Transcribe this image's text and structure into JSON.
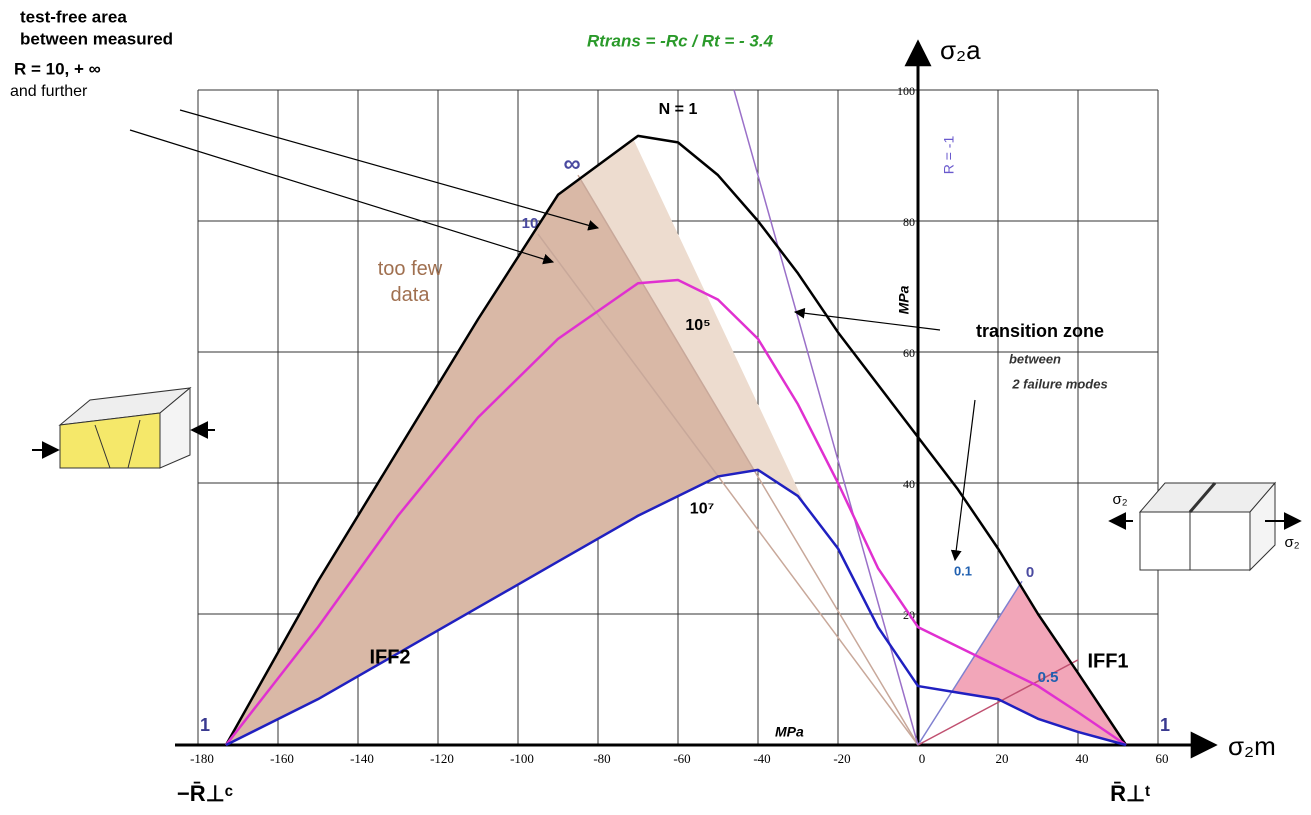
{
  "chart_data": {
    "type": "line",
    "title": "Rtrans = -Rc / Rt = - 3.4",
    "x_label": "σ₂m",
    "y_label": "σ₂a",
    "x_unit": "MPa",
    "y_unit": "MPa",
    "x": [
      -173,
      -150,
      -130,
      -110,
      -90,
      -70,
      -60,
      -50,
      -40,
      -30,
      -20,
      -10,
      0,
      10,
      20,
      30,
      40,
      52
    ],
    "series": [
      {
        "name": "N = 1",
        "color": "#000000",
        "values": [
          0,
          25,
          45,
          65,
          84,
          93,
          92,
          87,
          80,
          72,
          63,
          55,
          47,
          39,
          30,
          20,
          11,
          0
        ]
      },
      {
        "name": "10⁵",
        "color": "#e030d0",
        "values": [
          0,
          18,
          35,
          50,
          62,
          70.5,
          71,
          68,
          62,
          52,
          40,
          27,
          18,
          15,
          12,
          9,
          5,
          0
        ]
      },
      {
        "name": "10⁷",
        "color": "#2020c0",
        "values": [
          0,
          7,
          14,
          21,
          28,
          35,
          38,
          41,
          42,
          38,
          30,
          18,
          9,
          8,
          7,
          4,
          2,
          0
        ]
      }
    ],
    "lines": [
      {
        "label": "∞",
        "color": "#c8a89a",
        "x": [
          0,
          -85
        ],
        "values": [
          0,
          87
        ]
      },
      {
        "label": "10",
        "color": "#c8a89a",
        "x": [
          0,
          -95
        ],
        "values": [
          0,
          78
        ]
      },
      {
        "label": "0",
        "color": "#8080d0",
        "x": [
          0,
          26
        ],
        "values": [
          0,
          25
        ]
      },
      {
        "label": "0.5",
        "color": "#c05070",
        "x": [
          0,
          40
        ],
        "values": [
          0,
          13
        ]
      },
      {
        "label": "R = -1",
        "color": "#9a70c8",
        "x": [
          -46,
          0
        ],
        "values": [
          100,
          0
        ]
      }
    ],
    "xlim": [
      -180,
      60
    ],
    "ylim": [
      0,
      100
    ],
    "xticks": [
      -180,
      -160,
      -140,
      -120,
      -100,
      -80,
      -60,
      -40,
      -20,
      0,
      20,
      40,
      60
    ],
    "yticks": [
      20,
      40,
      60,
      80,
      100
    ],
    "grid": true,
    "annotations": [
      "test-free area",
      "between measured",
      "R = 10, + ∞",
      "and further",
      "too few data",
      "transition zone",
      "between",
      "2 failure modes",
      "IFF2",
      "IFF1",
      "0.1",
      "1",
      "1",
      "−R̄⊥ᶜ",
      "R̄⊥ᵗ",
      "σ₂",
      "σ₂"
    ]
  }
}
